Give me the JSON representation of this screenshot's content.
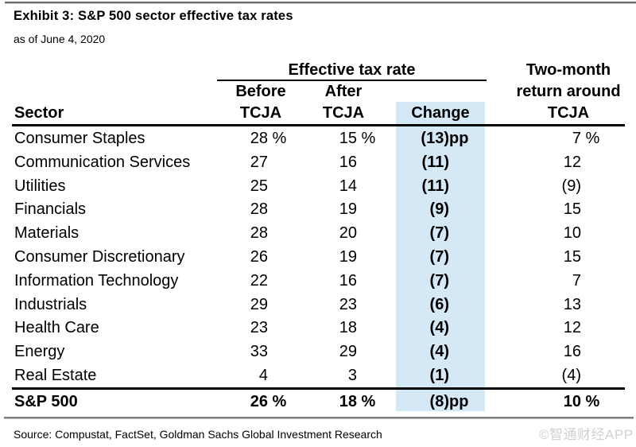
{
  "exhibit": {
    "title": "Exhibit 3: S&P 500 sector effective tax rates",
    "subtitle": "as of June 4, 2020",
    "source": "Source: Compustat, FactSet, Goldman Sachs Global Investment Research",
    "watermark": "©智通财经APP"
  },
  "table": {
    "header": {
      "sector": "Sector",
      "group_effective_tax_rate": "Effective tax rate",
      "before_line1": "Before",
      "before_line2": "TCJA",
      "after_line1": "After",
      "after_line2": "TCJA",
      "change": "Change",
      "return_line1": "Two-month",
      "return_line2": "return around",
      "return_line3": "TCJA"
    },
    "unit_percent": " %",
    "unit_pp": "pp"
  },
  "colors": {
    "change_highlight": "#d4e8f6",
    "rule_black": "#000000",
    "rule_gray": "#7d7d7d",
    "watermark_gray": "#d3d1cf"
  },
  "chart_data": {
    "type": "table",
    "title": "Exhibit 3: S&P 500 sector effective tax rates",
    "subtitle": "as of June 4, 2020",
    "columns": [
      "Sector",
      "Effective tax rate Before TCJA (%)",
      "Effective tax rate After TCJA (%)",
      "Change (pp)",
      "Two-month return around TCJA (%)"
    ],
    "rows": [
      [
        "Consumer Staples",
        28,
        15,
        -13,
        7
      ],
      [
        "Communication Services",
        27,
        16,
        -11,
        12
      ],
      [
        "Utilities",
        25,
        14,
        -11,
        -9
      ],
      [
        "Financials",
        28,
        19,
        -9,
        15
      ],
      [
        "Materials",
        28,
        20,
        -7,
        10
      ],
      [
        "Consumer Discretionary",
        26,
        19,
        -7,
        15
      ],
      [
        "Information Technology",
        22,
        16,
        -7,
        7
      ],
      [
        "Industrials",
        29,
        23,
        -6,
        13
      ],
      [
        "Health Care",
        23,
        18,
        -4,
        12
      ],
      [
        "Energy",
        33,
        29,
        -4,
        16
      ],
      [
        "Real Estate",
        4,
        3,
        -1,
        -4
      ]
    ],
    "total_row": [
      "S&P 500",
      26,
      18,
      -8,
      10
    ],
    "source": "Source: Compustat, FactSet, Goldman Sachs Global Investment Research"
  }
}
